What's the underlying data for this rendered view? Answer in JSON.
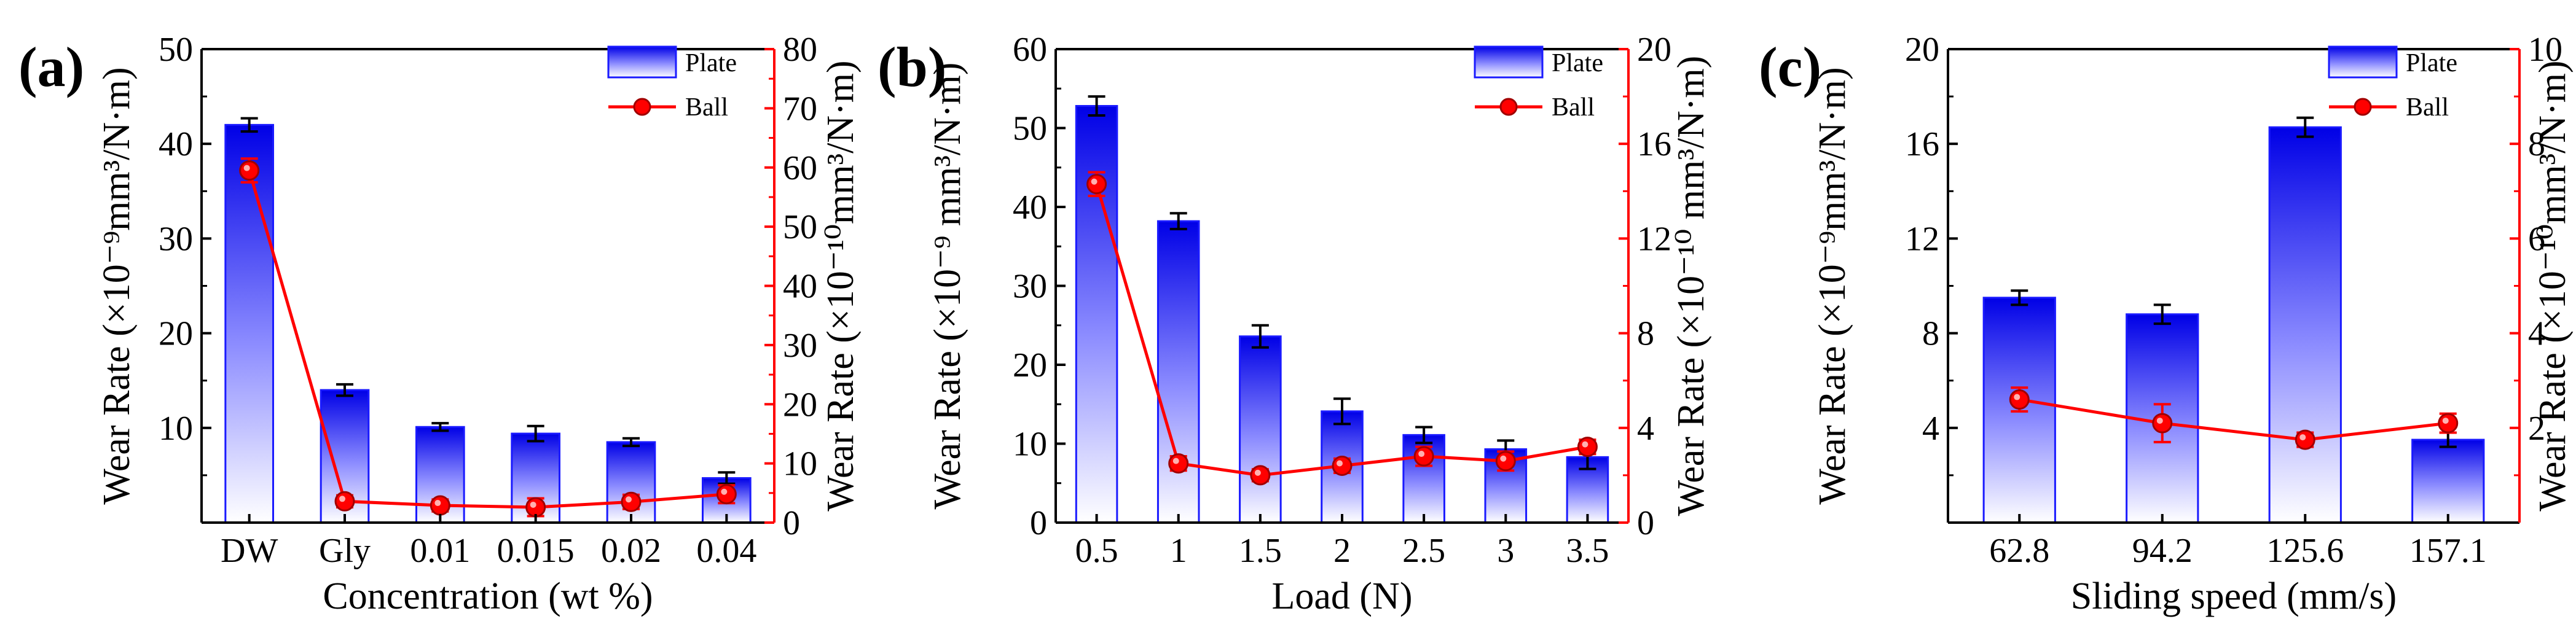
{
  "colors": {
    "bar_top": "#0000e6",
    "bar_bottom": "#ffffff",
    "bar_edge": "#1a1aff",
    "ball": "#ff0000",
    "axis": "#000000",
    "right_axis": "#ff0000"
  },
  "chart_data": [
    {
      "type": "bar+line",
      "panel_label": "(a)",
      "categories": [
        "DW",
        "Gly",
        "0.01",
        "0.015",
        "0.02",
        "0.04"
      ],
      "xlabel": "Concentration (wt %)",
      "ylabel": "Wear Rate (×10⁻⁹mm³/N·m)",
      "y2label": "Wear Rate (×10⁻¹⁰mm³/N·m)",
      "ylim": [
        0,
        50
      ],
      "yticks": [
        "10",
        "20",
        "30",
        "40",
        "50"
      ],
      "y2lim": [
        0,
        80
      ],
      "y2ticks": [
        "0",
        "10",
        "20",
        "30",
        "40",
        "50",
        "60",
        "70",
        "80"
      ],
      "series": [
        {
          "name": "Plate",
          "kind": "bar",
          "axis": "left",
          "values": [
            42.0,
            14.0,
            10.1,
            9.4,
            8.5,
            4.7
          ],
          "errors": [
            0.7,
            0.6,
            0.4,
            0.8,
            0.4,
            0.6
          ]
        },
        {
          "name": "Ball",
          "kind": "line",
          "axis": "right",
          "values": [
            59.5,
            3.6,
            2.9,
            2.6,
            3.5,
            4.8
          ],
          "errors": [
            2.0,
            1.0,
            1.0,
            1.5,
            1.2,
            1.5
          ]
        }
      ],
      "legend": [
        "Plate",
        "Ball"
      ],
      "legend_position": "top-right"
    },
    {
      "type": "bar+line",
      "panel_label": "(b)",
      "categories": [
        "0.5",
        "1",
        "1.5",
        "2",
        "2.5",
        "3",
        "3.5"
      ],
      "xlabel": "Load (N)",
      "ylabel": "Wear Rate (×10⁻⁹ mm³/N·m)",
      "y2label": "Wear Rate (×10⁻¹⁰ mm³/N·m)",
      "ylim": [
        0,
        60
      ],
      "yticks": [
        "0",
        "10",
        "20",
        "30",
        "40",
        "50",
        "60"
      ],
      "y2lim": [
        0,
        20
      ],
      "y2ticks": [
        "0",
        "4",
        "8",
        "12",
        "16",
        "20"
      ],
      "series": [
        {
          "name": "Plate",
          "kind": "bar",
          "axis": "left",
          "values": [
            52.8,
            38.2,
            23.6,
            14.1,
            11.1,
            9.3,
            8.3
          ],
          "errors": [
            1.2,
            1.0,
            1.4,
            1.6,
            1.0,
            1.1,
            1.5
          ]
        },
        {
          "name": "Ball",
          "kind": "line",
          "axis": "right",
          "values": [
            14.3,
            2.5,
            2.0,
            2.4,
            2.8,
            2.6,
            3.2
          ],
          "errors": [
            0.5,
            0.3,
            0.25,
            0.3,
            0.4,
            0.4,
            0.3
          ]
        }
      ],
      "legend": [
        "Plate",
        "Ball"
      ],
      "legend_position": "top-right"
    },
    {
      "type": "bar+line",
      "panel_label": "(c)",
      "categories": [
        "62.8",
        "94.2",
        "125.6",
        "157.1"
      ],
      "xlabel": "Sliding speed (mm/s)",
      "ylabel": "Wear Rate (×10⁻⁹mm³/N·m)",
      "y2label": "Wear Rate (×10⁻¹⁰mm³/N·m)",
      "ylim": [
        0,
        20
      ],
      "yticks": [
        "4",
        "8",
        "12",
        "16",
        "20"
      ],
      "y2lim": [
        0,
        10
      ],
      "y2ticks": [
        "2",
        "4",
        "6",
        "8",
        "10"
      ],
      "series": [
        {
          "name": "Plate",
          "kind": "bar",
          "axis": "left",
          "values": [
            9.5,
            8.8,
            16.7,
            3.5
          ],
          "errors": [
            0.3,
            0.4,
            0.4,
            0.3
          ]
        },
        {
          "name": "Ball",
          "kind": "line",
          "axis": "right",
          "values": [
            2.6,
            2.1,
            1.75,
            2.1
          ],
          "errors": [
            0.25,
            0.4,
            0.15,
            0.2
          ]
        }
      ],
      "legend": [
        "Plate",
        "Ball"
      ],
      "legend_position": "top-right"
    }
  ]
}
